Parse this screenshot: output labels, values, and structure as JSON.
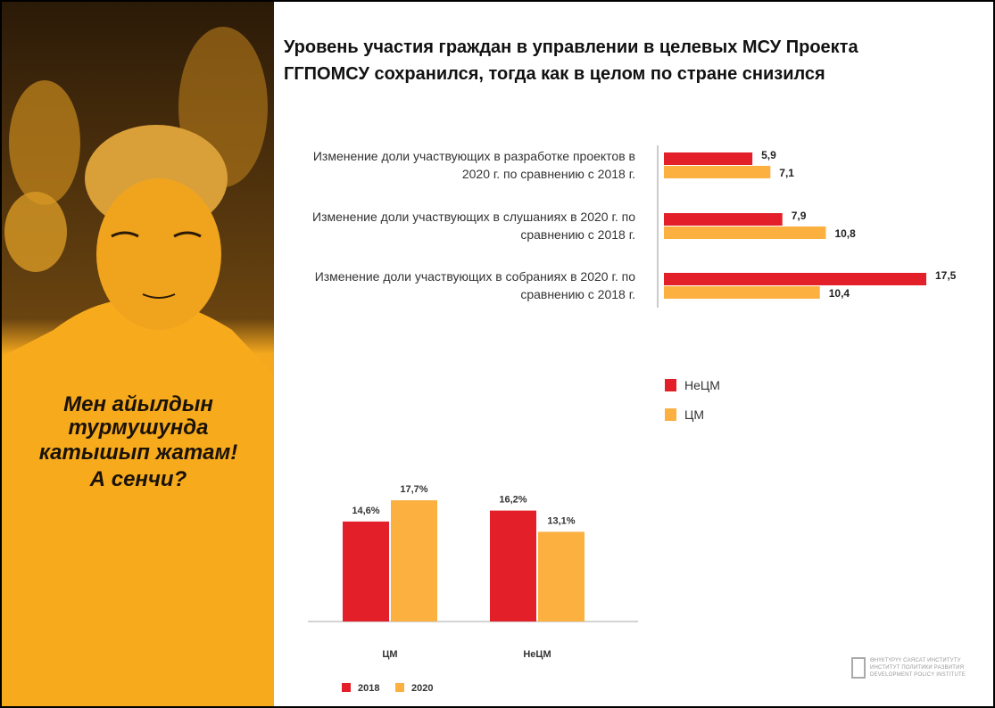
{
  "title": "Уровень участия граждан в управлении в целевых МСУ Проекта ГГПОМСУ сохранился, тогда как в целом по стране снизился",
  "poster_text": [
    "Мен айылдын",
    "турмушунда",
    "катышып жатам!",
    "А сенчи?"
  ],
  "logo_text": [
    "ӨНҮКТҮРҮҮ САЯСАТ ИНСТИТУТУ",
    "ИНСТИТУТ ПОЛИТИКИ РАЗВИТИЯ",
    "DEVELOPMENT POLICY INSTITUTE"
  ],
  "chart_data": [
    {
      "type": "bar",
      "orientation": "horizontal",
      "categories": [
        "Изменение доли участвующих в разработке проектов в 2020 г. по сравнению с 2018 г.",
        "Изменение доли участвующих в слушаниях в 2020 г. по сравнению с 2018 г.",
        "Изменение доли участвующих в собраниях в 2020 г. по сравнению с 2018 г."
      ],
      "series": [
        {
          "name": "НеЦМ",
          "color": "#e3202a",
          "values": [
            5.9,
            7.9,
            17.5
          ],
          "value_labels": [
            "5,9",
            "7,9",
            "17,5"
          ]
        },
        {
          "name": "ЦМ",
          "color": "#fbb040",
          "values": [
            7.1,
            10.8,
            10.4
          ],
          "value_labels": [
            "7,1",
            "10,8",
            "10,4"
          ]
        }
      ],
      "legend": "right"
    },
    {
      "type": "bar",
      "orientation": "vertical",
      "categories": [
        "ЦМ",
        "НеЦМ"
      ],
      "series": [
        {
          "name": "2018",
          "color": "#e3202a",
          "values": [
            14.6,
            16.2
          ],
          "value_labels": [
            "14,6%",
            "16,2%"
          ]
        },
        {
          "name": "2020",
          "color": "#fbb040",
          "values": [
            17.7,
            13.1
          ],
          "value_labels": [
            "17,7%",
            "13,1%"
          ]
        }
      ],
      "legend": "bottom"
    }
  ]
}
